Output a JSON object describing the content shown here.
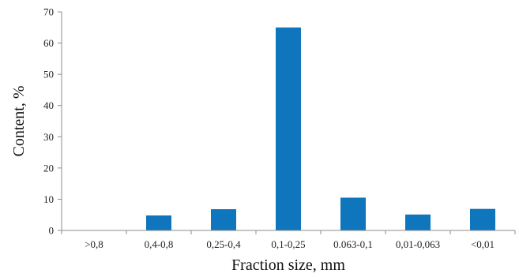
{
  "chart_data": {
    "type": "bar",
    "categories": [
      ">0,8",
      "0,4-0,8",
      "0,25-0,4",
      "0,1-0,25",
      "0.063-0,1",
      "0,01-0,063",
      "<0,01"
    ],
    "values": [
      0,
      4.8,
      6.8,
      65,
      10.5,
      5.1,
      6.9
    ],
    "xlabel": "Fraction size, mm",
    "ylabel": "Content, %",
    "ylim": [
      0,
      70
    ],
    "yticks": [
      0,
      10,
      20,
      30,
      40,
      50,
      60,
      70
    ],
    "grid": false,
    "legend": "none",
    "bar_color": "#0f75bc"
  }
}
